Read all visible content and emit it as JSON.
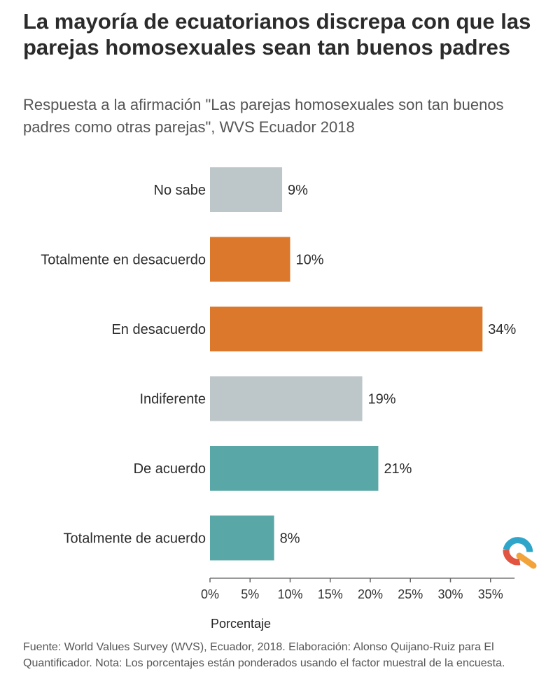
{
  "header": {
    "title": "La mayoría de ecuatorianos discrepa con que las parejas homosexuales sean tan buenos padres",
    "subtitle": "Respuesta a la afirmación \"Las parejas homosexuales son tan buenos padres como otras parejas\", WVS Ecuador 2018"
  },
  "footer": {
    "source": "Fuente: World Values Survey (WVS), Ecuador, 2018. Elaboración: Alonso Quijano-Ruiz para El Quantificador. Nota: Los porcentajes están ponderados usando el factor muestral de la encuesta."
  },
  "logo": {
    "name": "el-quantificador-logo",
    "colors": [
      "#2fa6c9",
      "#e2543f",
      "#f2a33a"
    ]
  },
  "chart_data": {
    "type": "bar",
    "orientation": "horizontal",
    "categories": [
      "No sabe",
      "Totalmente en desacuerdo",
      "En desacuerdo",
      "Indiferente",
      "De acuerdo",
      "Totalmente de acuerdo"
    ],
    "values": [
      9,
      10,
      34,
      19,
      21,
      8
    ],
    "value_labels": [
      "9%",
      "10%",
      "34%",
      "19%",
      "21%",
      "8%"
    ],
    "colors": [
      "#bdc6c9",
      "#dc782b",
      "#dc782b",
      "#bdc6c9",
      "#59a7a7",
      "#59a7a7"
    ],
    "xlabel": "Porcentaje",
    "ylabel": "",
    "xlim": [
      0,
      38
    ],
    "xticks": [
      0,
      5,
      10,
      15,
      20,
      25,
      30,
      35
    ],
    "xtick_labels": [
      "0%",
      "5%",
      "10%",
      "15%",
      "20%",
      "25%",
      "30%",
      "35%"
    ],
    "grid": false,
    "legend": "none"
  }
}
